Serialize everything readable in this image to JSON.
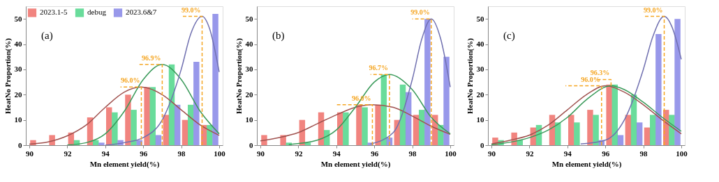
{
  "chart_data": [
    {
      "type": "bar",
      "xlabel": "Mn element yield(%)",
      "ylabel": "HeatNo Proportion(%)",
      "xlim": [
        90,
        100
      ],
      "xticks": [
        90,
        92,
        94,
        96,
        98,
        100
      ],
      "ylim": [
        0,
        55
      ],
      "yticks": [
        0,
        10,
        20,
        30,
        40,
        50
      ],
      "legend": "top",
      "grid": false,
      "annotations": [
        "(a)",
        {
          "text": "96.0%",
          "x": 95.9,
          "y": 23
        },
        {
          "text": "96.9%",
          "x": 97.0,
          "y": 32
        },
        {
          "text": "99.0%",
          "x": 99.1,
          "y": 51
        }
      ],
      "series": [
        {
          "name": "2023.1-5",
          "color": "#ee6f68",
          "x": [
            90.2,
            91.2,
            92.2,
            93.2,
            94.2,
            95.2,
            96.2,
            97.2,
            98.2,
            99.2
          ],
          "values": [
            2,
            4,
            5,
            11,
            15,
            20,
            23,
            12,
            10,
            8
          ]
        },
        {
          "name": "debug",
          "color": "#4fd68a",
          "x": [
            92.5,
            93.5,
            94.5,
            95.5,
            96.5,
            97.5,
            98.5,
            99.5
          ],
          "values": [
            2,
            2,
            13,
            14,
            23,
            32,
            16,
            8
          ]
        },
        {
          "name": "2023.6&7",
          "color": "#8686e6",
          "x": [
            93.8,
            94.8,
            95.8,
            96.8,
            97.8,
            98.8,
            99.8
          ],
          "values": [
            1,
            2,
            2,
            4,
            16,
            33,
            52
          ]
        },
        {
          "type": "line",
          "color": "#a0524f",
          "x": [
            90,
            91,
            92,
            93,
            94,
            95,
            95.9,
            97,
            98,
            99,
            100
          ],
          "values": [
            0.4,
            1.3,
            3.7,
            8,
            15,
            21,
            23,
            20,
            14,
            8,
            3.9
          ]
        },
        {
          "type": "line",
          "color": "#3a9a5a",
          "x": [
            92,
            93,
            94,
            95,
            96,
            97,
            98,
            99,
            100
          ],
          "values": [
            0.1,
            1,
            4.5,
            13.4,
            26,
            32,
            26,
            13.4,
            4.5
          ]
        },
        {
          "type": "line",
          "color": "#7070b0",
          "x": [
            94,
            95,
            96,
            97,
            98,
            98.5,
            99.1,
            99.5,
            100
          ],
          "values": [
            0,
            1,
            3,
            10,
            30,
            44,
            51,
            46,
            29
          ]
        },
        {
          "type": "line",
          "line_style": "dashed",
          "color": "#f5a623",
          "x": [
            95.9,
            95.9,
            94.8
          ],
          "values": [
            0,
            23,
            23
          ]
        },
        {
          "type": "line",
          "line_style": "dashed",
          "color": "#f5a623",
          "x": [
            97.0,
            97.0,
            95.8
          ],
          "values": [
            0,
            32,
            32
          ]
        },
        {
          "type": "line",
          "line_style": "dashed",
          "color": "#f5a623",
          "x": [
            99.1,
            99.1,
            98.0
          ],
          "values": [
            0,
            51,
            51
          ]
        }
      ]
    },
    {
      "type": "bar",
      "xlabel": "Mn element yield(%)",
      "ylabel": "HeatNo Proportion(%)",
      "xlim": [
        90,
        100
      ],
      "xticks": [
        90,
        92,
        94,
        96,
        98,
        100
      ],
      "ylim": [
        0,
        55
      ],
      "yticks": [
        0,
        10,
        20,
        30,
        40,
        50
      ],
      "legend": "top",
      "grid": false,
      "annotations": [
        "(b)",
        {
          "text": "96.0%",
          "x": 95.9,
          "y": 16
        },
        {
          "text": "96.7%",
          "x": 96.8,
          "y": 28
        },
        {
          "text": "99.0%",
          "x": 99.0,
          "y": 50
        }
      ],
      "series": [
        {
          "name": "2023.1-5",
          "color": "#ee6f68",
          "x": [
            90.2,
            91.2,
            92.2,
            93.2,
            94.2,
            95.2,
            96.2,
            97.2,
            98.2,
            99.2
          ],
          "values": [
            4,
            4,
            10,
            13,
            13,
            16,
            16,
            10,
            12,
            12
          ]
        },
        {
          "name": "debug",
          "color": "#4fd68a",
          "x": [
            91.5,
            92.5,
            93.5,
            94.5,
            95.5,
            96.5,
            97.5,
            98.5,
            99.5
          ],
          "values": [
            1,
            1,
            6,
            13,
            15,
            28,
            24,
            14,
            8
          ]
        },
        {
          "name": "2023.6&7",
          "color": "#8686e6",
          "x": [
            95.8,
            96.8,
            97.8,
            98.8,
            99.8
          ],
          "values": [
            1,
            3,
            21,
            50,
            35
          ]
        },
        {
          "type": "line",
          "color": "#a0524f",
          "x": [
            90,
            91,
            92,
            93,
            94,
            95,
            95.9,
            97,
            98,
            99,
            100
          ],
          "values": [
            1.7,
            3,
            5,
            8.5,
            12,
            15,
            16,
            15,
            11.5,
            7.5,
            4.3
          ]
        },
        {
          "type": "line",
          "color": "#3a9a5a",
          "x": [
            91.5,
            93,
            94,
            95,
            96,
            96.8,
            98,
            99,
            100
          ],
          "values": [
            0.3,
            2,
            6,
            15,
            25,
            28,
            22,
            11,
            4.5
          ]
        },
        {
          "type": "line",
          "color": "#7070b0",
          "x": [
            95.8,
            97,
            98,
            98.5,
            99,
            99.5,
            100
          ],
          "values": [
            0.5,
            5,
            26,
            42,
            50,
            42,
            23
          ]
        },
        {
          "type": "line",
          "line_style": "dashed",
          "color": "#f5a623",
          "x": [
            95.9,
            95.9,
            94.0
          ],
          "values": [
            0,
            16,
            16
          ]
        },
        {
          "type": "line",
          "line_style": "dashed",
          "color": "#f5a623",
          "x": [
            96.8,
            96.8,
            95.8
          ],
          "values": [
            0,
            28,
            28
          ]
        },
        {
          "type": "line",
          "line_style": "dashed",
          "color": "#f5a623",
          "x": [
            99.0,
            99.0,
            98.0
          ],
          "values": [
            0,
            50,
            50
          ]
        }
      ]
    },
    {
      "type": "bar",
      "xlabel": "Mn element yield(%)",
      "ylabel": "HeatNo Proportion(%)",
      "xlim": [
        90,
        100
      ],
      "xticks": [
        90,
        92,
        94,
        96,
        98,
        100
      ],
      "ylim": [
        0,
        55
      ],
      "yticks": [
        0,
        10,
        20,
        30,
        40,
        50
      ],
      "legend": "top",
      "grid": false,
      "annotations": [
        "(c)",
        {
          "text": "96.0%",
          "x": 95.8,
          "y": 23.5
        },
        {
          "text": "96.3%",
          "x": 96.3,
          "y": 26
        },
        {
          "text": "99.0%",
          "x": 99.1,
          "y": 51
        }
      ],
      "series": [
        {
          "name": "2023.1-5",
          "color": "#ee6f68",
          "x": [
            90.2,
            91.2,
            92.2,
            93.2,
            94.2,
            95.2,
            96.2,
            97.2,
            98.2,
            99.2
          ],
          "values": [
            3,
            5,
            7,
            12,
            12,
            14,
            24,
            12,
            7,
            14
          ]
        },
        {
          "name": "debug",
          "color": "#4fd68a",
          "x": [
            90.5,
            91.5,
            92.5,
            93.5,
            94.5,
            95.5,
            96.5,
            97.5,
            98.5,
            99.5
          ],
          "values": [
            2,
            2,
            8,
            9,
            9,
            12,
            24,
            20,
            12,
            12
          ]
        },
        {
          "name": "2023.6&7",
          "color": "#8686e6",
          "x": [
            95.8,
            96.8,
            97.8,
            98.8,
            99.8
          ],
          "values": [
            2,
            4,
            9,
            44,
            50
          ]
        },
        {
          "type": "line",
          "color": "#a0524f",
          "x": [
            90,
            91,
            92,
            93,
            94,
            95,
            96,
            97,
            98,
            99,
            100
          ],
          "values": [
            0.5,
            2,
            4,
            8,
            14,
            20,
            23.5,
            21,
            16,
            10,
            4.5
          ]
        },
        {
          "type": "line",
          "color": "#3a9a5a",
          "x": [
            90,
            91,
            92,
            93,
            94,
            95,
            96.3,
            97,
            98,
            99,
            100
          ],
          "values": [
            0.2,
            1.2,
            3,
            6,
            11,
            18,
            23.5,
            22,
            17,
            11,
            5.5
          ]
        },
        {
          "type": "line",
          "color": "#7070b0",
          "x": [
            94.7,
            96,
            97,
            98,
            98.5,
            99.1,
            99.5,
            100
          ],
          "values": [
            0.5,
            2,
            10,
            30,
            43,
            51,
            47,
            34
          ]
        },
        {
          "type": "line",
          "line_style": "dashed",
          "color": "#f5a623",
          "x": [
            95.8,
            95.8,
            93.9
          ],
          "values": [
            0,
            23.5,
            23.5
          ]
        },
        {
          "type": "line",
          "line_style": "dashed",
          "color": "#f5a623",
          "x": [
            96.3,
            96.3,
            95.5
          ],
          "values": [
            23.5,
            26,
            26
          ]
        },
        {
          "type": "line",
          "line_style": "dashed",
          "color": "#f5a623",
          "x": [
            99.1,
            99.1,
            98.0
          ],
          "values": [
            0,
            51,
            51
          ]
        }
      ]
    }
  ]
}
